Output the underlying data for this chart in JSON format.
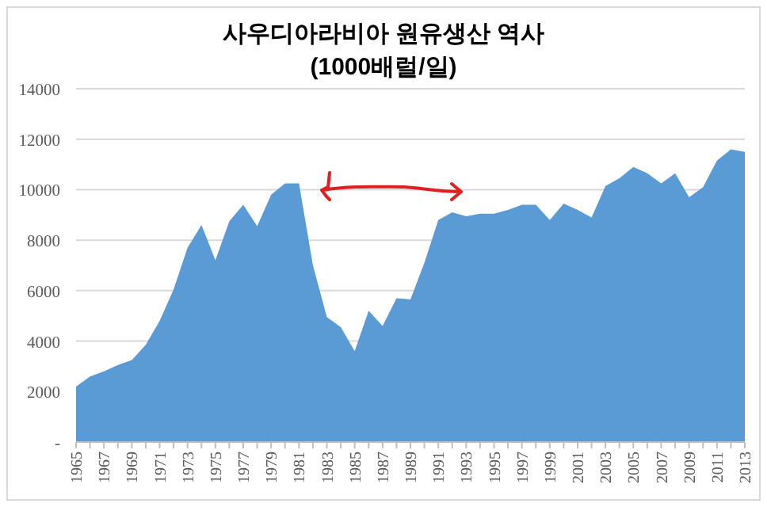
{
  "chart_data": {
    "type": "area",
    "title": "사우디아라비아 원유생산 역사",
    "subtitle": "(1000배럴/일)",
    "categories": [
      "1965",
      null,
      "1967",
      null,
      "1969",
      null,
      "1971",
      null,
      "1973",
      null,
      "1975",
      null,
      "1977",
      null,
      "1979",
      null,
      "1981",
      null,
      "1983",
      null,
      "1985",
      null,
      "1987",
      null,
      "1989",
      null,
      "1991",
      null,
      "1993",
      null,
      "1995",
      null,
      "1997",
      null,
      "1999",
      null,
      "2001",
      null,
      "2003",
      null,
      "2005",
      null,
      "2007",
      null,
      "2009",
      null,
      "2011",
      null,
      "2013"
    ],
    "series": [
      {
        "color": "#5b9bd5",
        "values": [
          2200,
          2600,
          2800,
          3050,
          3250,
          3850,
          4800,
          6050,
          7700,
          8600,
          7200,
          8750,
          9400,
          8550,
          9800,
          10250,
          10250,
          7000,
          4950,
          4550,
          3600,
          5200,
          4600,
          5700,
          5650,
          7100,
          8800,
          9100,
          8950,
          9050,
          9050,
          9200,
          9400,
          9400,
          8800,
          9450,
          9200,
          8900,
          10150,
          10450,
          10900,
          10650,
          10250,
          10650,
          9700,
          10100,
          11150,
          11600,
          11500
        ]
      }
    ],
    "ylim": [
      0,
      14000
    ],
    "yticks": [
      {
        "value": 0,
        "label": "-"
      },
      2000,
      4000,
      6000,
      8000,
      10000,
      12000,
      14000
    ],
    "grid": "y"
  }
}
